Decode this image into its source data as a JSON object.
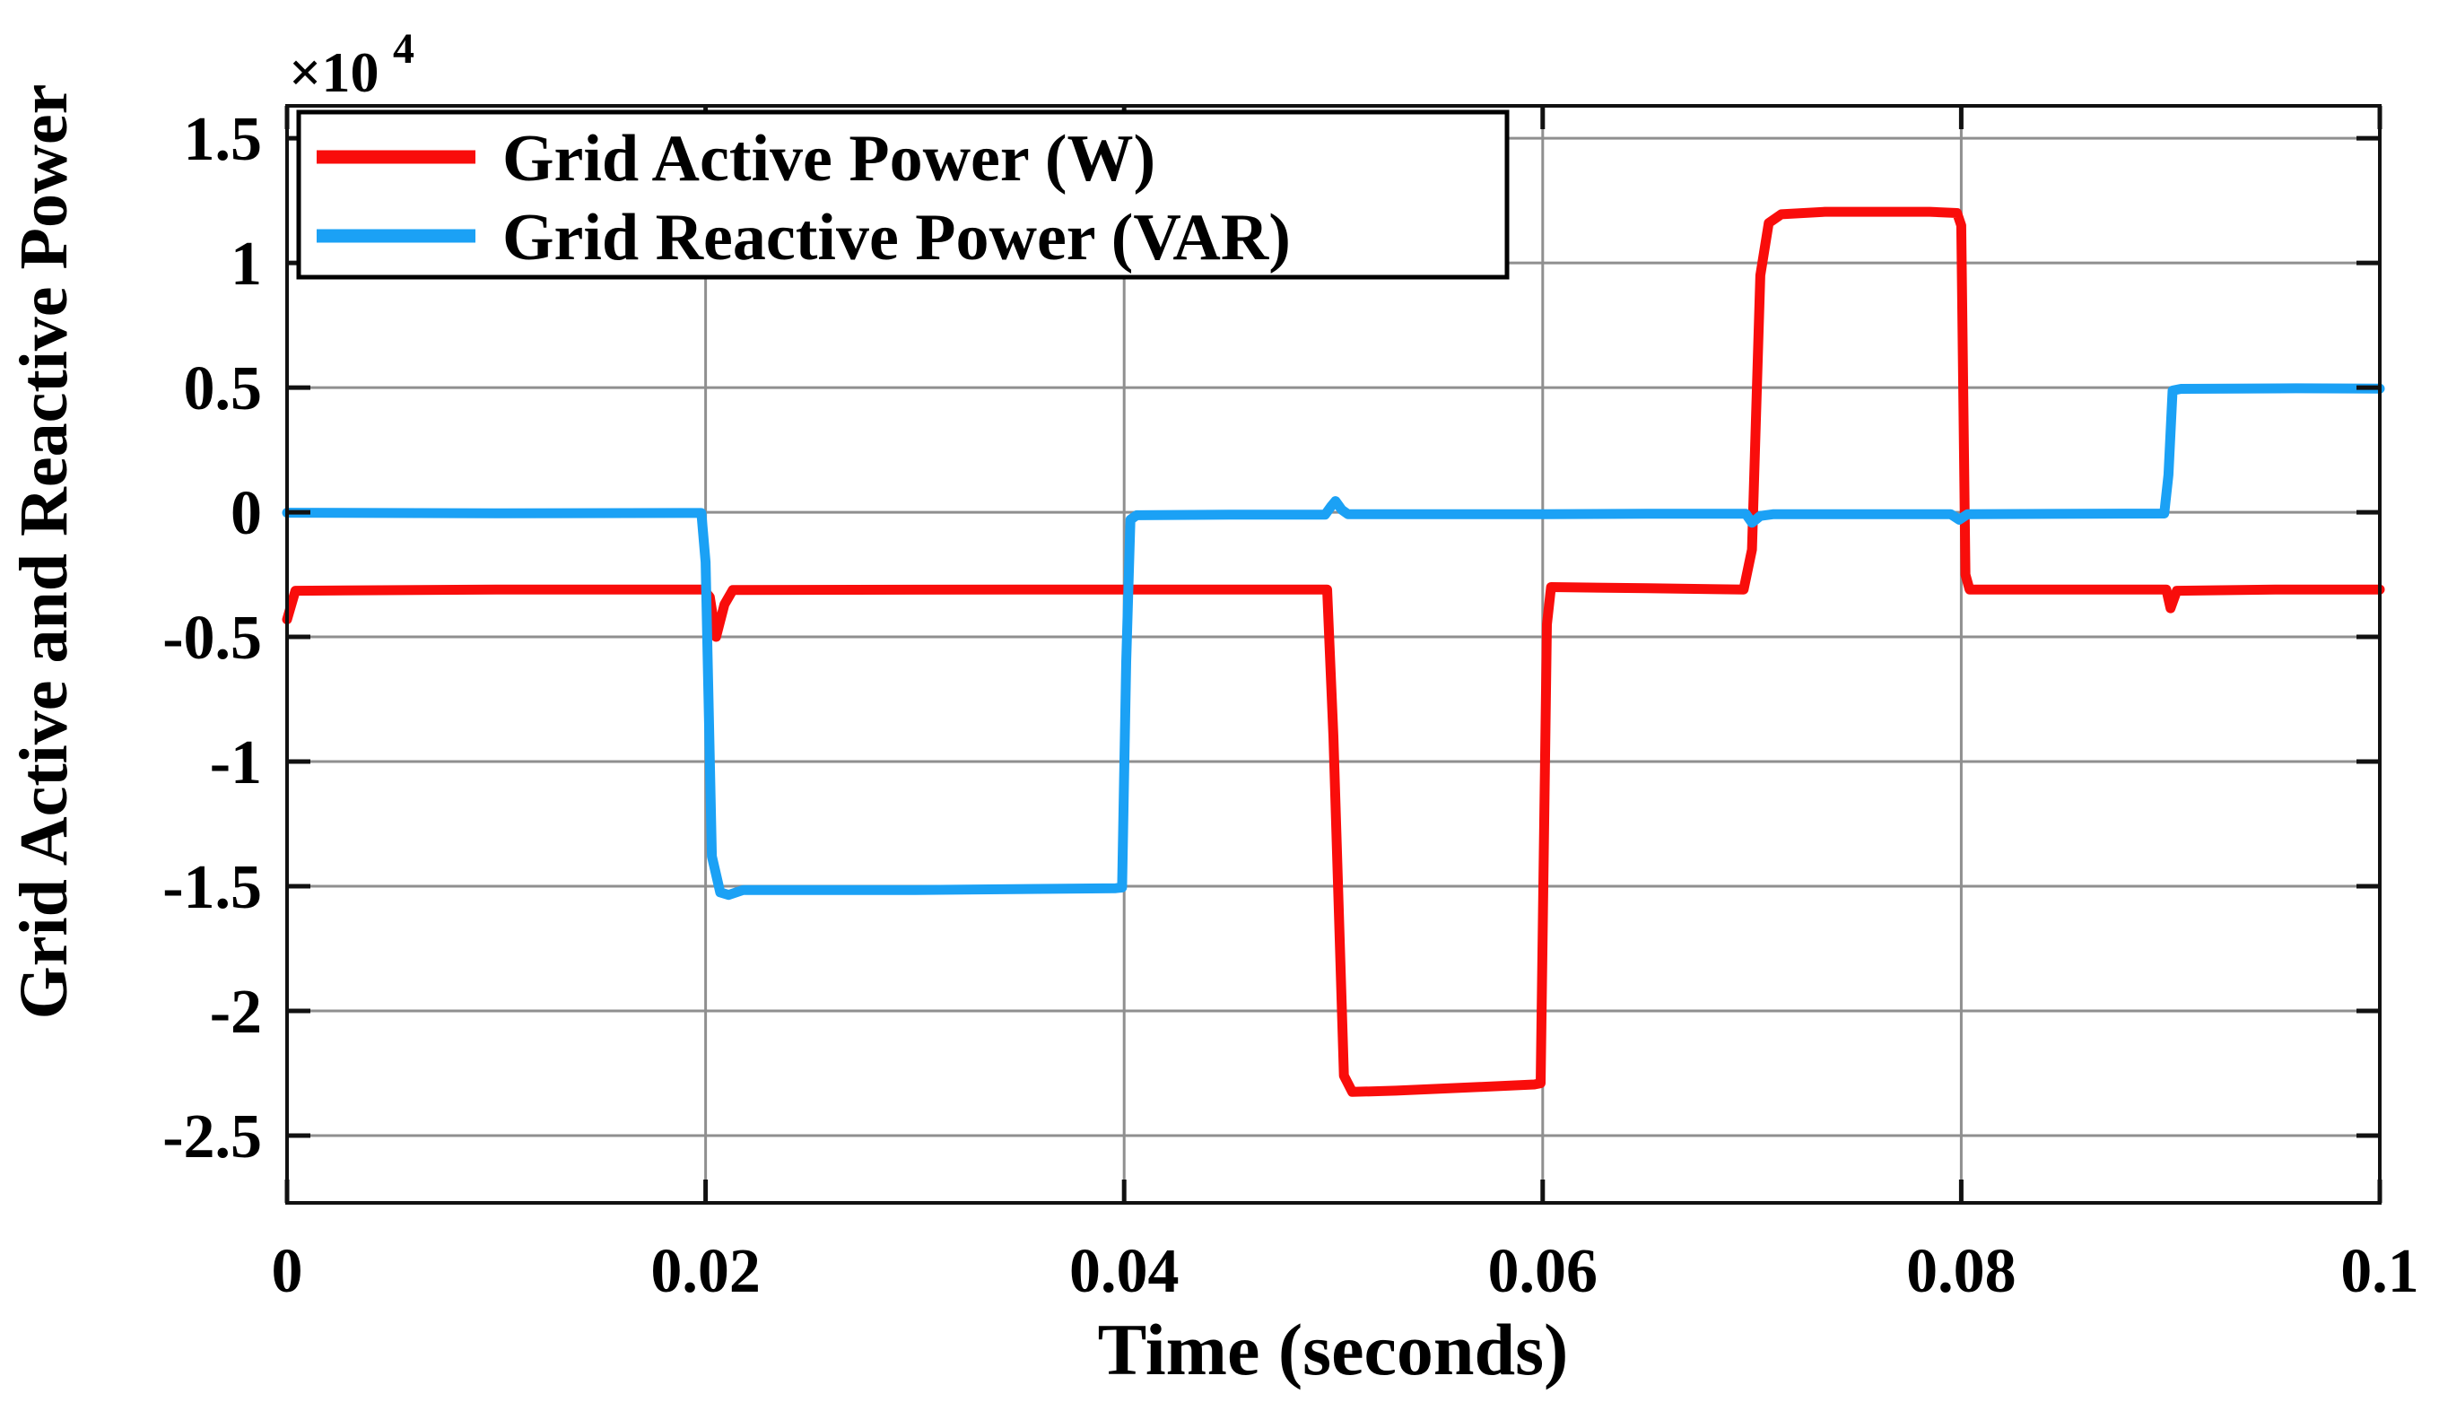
{
  "page": {
    "background": "#ffffff"
  },
  "chart_data": {
    "type": "line",
    "title": "",
    "xlabel": "Time (seconds)",
    "ylabel": "Grid Active and Reactive Power",
    "multiplier": {
      "base": "×10",
      "exponent": "4"
    },
    "xlim": [
      0,
      0.1
    ],
    "ylim": [
      -27700,
      16300
    ],
    "x_ticks": [
      0,
      0.02,
      0.04,
      0.06,
      0.08,
      0.1
    ],
    "x_tick_labels": [
      "0",
      "0.02",
      "0.04",
      "0.06",
      "0.08",
      "0.1"
    ],
    "y_ticks": [
      15000,
      10000,
      5000,
      0,
      -5000,
      -10000,
      -15000,
      -20000,
      -25000
    ],
    "y_tick_labels": [
      "1.5",
      "1",
      "0.5",
      "0",
      "-0.5",
      "-1",
      "-1.5",
      "-2",
      "-2.5"
    ],
    "grid": true,
    "legend_position": "top-left",
    "colors": {
      "grid": "#8F8F8F",
      "axis": "#111111",
      "text": "#000000",
      "legend_border": "#000000",
      "legend_fill": "#FFFFFF",
      "active": "#F90D0B",
      "reactive": "#1BA1F5"
    },
    "series": [
      {
        "name": "Grid Active Power (W)",
        "unit": "W",
        "color": "#F90D0B",
        "points": [
          [
            0.0,
            -4300
          ],
          [
            0.0004,
            -3150
          ],
          [
            0.01,
            -3100
          ],
          [
            0.0199,
            -3100
          ],
          [
            0.0202,
            -3400
          ],
          [
            0.0205,
            -5000
          ],
          [
            0.0209,
            -3700
          ],
          [
            0.0213,
            -3120
          ],
          [
            0.035,
            -3100
          ],
          [
            0.0497,
            -3100
          ],
          [
            0.05,
            -9000
          ],
          [
            0.0505,
            -22600
          ],
          [
            0.0509,
            -23250
          ],
          [
            0.053,
            -23200
          ],
          [
            0.057,
            -23050
          ],
          [
            0.0596,
            -22950
          ],
          [
            0.0599,
            -22900
          ],
          [
            0.0602,
            -4500
          ],
          [
            0.0604,
            -3000
          ],
          [
            0.065,
            -3050
          ],
          [
            0.0696,
            -3100
          ],
          [
            0.07,
            -1500
          ],
          [
            0.0704,
            9500
          ],
          [
            0.0708,
            11600
          ],
          [
            0.0714,
            11950
          ],
          [
            0.0735,
            12050
          ],
          [
            0.0785,
            12050
          ],
          [
            0.0798,
            12000
          ],
          [
            0.08,
            11500
          ],
          [
            0.0802,
            -2500
          ],
          [
            0.0804,
            -3100
          ],
          [
            0.085,
            -3100
          ],
          [
            0.0898,
            -3100
          ],
          [
            0.09,
            -3850
          ],
          [
            0.0903,
            -3150
          ],
          [
            0.095,
            -3100
          ],
          [
            0.1,
            -3100
          ]
        ]
      },
      {
        "name": "Grid Reactive Power (VAR)",
        "unit": "VAR",
        "color": "#1BA1F5",
        "points": [
          [
            0.0,
            -20
          ],
          [
            0.01,
            -40
          ],
          [
            0.0198,
            -30
          ],
          [
            0.02,
            -2000
          ],
          [
            0.0203,
            -13800
          ],
          [
            0.0207,
            -15250
          ],
          [
            0.0211,
            -15350
          ],
          [
            0.0218,
            -15150
          ],
          [
            0.03,
            -15150
          ],
          [
            0.0396,
            -15080
          ],
          [
            0.0399,
            -15050
          ],
          [
            0.0401,
            -6000
          ],
          [
            0.0403,
            -300
          ],
          [
            0.0406,
            -120
          ],
          [
            0.045,
            -100
          ],
          [
            0.0496,
            -100
          ],
          [
            0.0499,
            250
          ],
          [
            0.0501,
            450
          ],
          [
            0.0504,
            100
          ],
          [
            0.0507,
            -80
          ],
          [
            0.06,
            -80
          ],
          [
            0.065,
            -60
          ],
          [
            0.0697,
            -60
          ],
          [
            0.07,
            -420
          ],
          [
            0.0704,
            -150
          ],
          [
            0.071,
            -80
          ],
          [
            0.0795,
            -80
          ],
          [
            0.0799,
            -300
          ],
          [
            0.0803,
            -80
          ],
          [
            0.086,
            -60
          ],
          [
            0.0897,
            -50
          ],
          [
            0.0899,
            1500
          ],
          [
            0.0901,
            4880
          ],
          [
            0.0905,
            4950
          ],
          [
            0.096,
            4970
          ],
          [
            0.1,
            4960
          ]
        ]
      }
    ]
  }
}
